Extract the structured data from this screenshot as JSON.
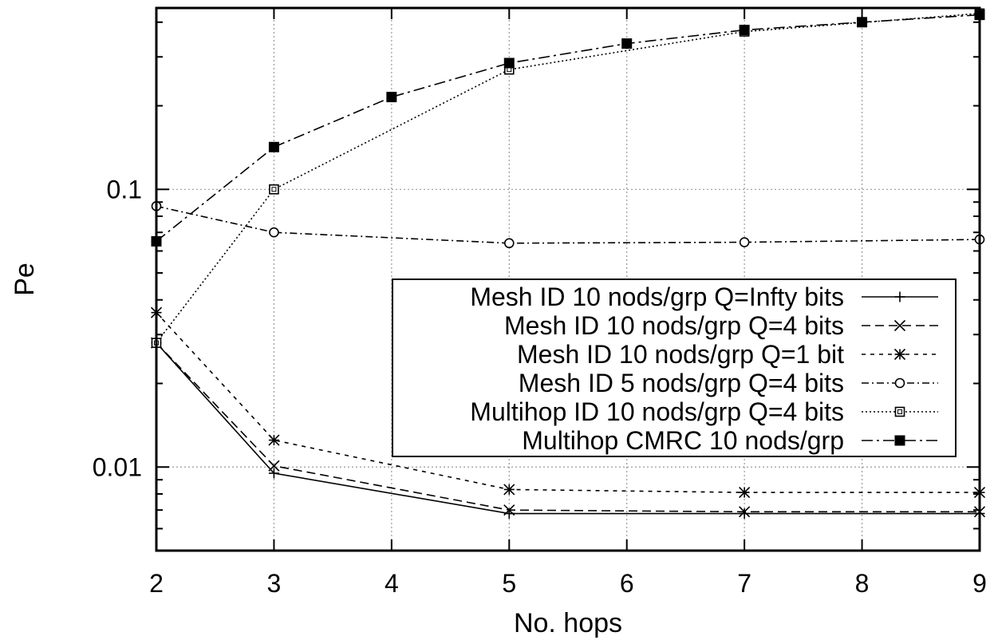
{
  "chart_data": {
    "type": "line",
    "xlabel": "No. hops",
    "ylabel": "Pe",
    "xlim": [
      2,
      9
    ],
    "ylim": [
      0.005,
      0.45
    ],
    "yscale": "log",
    "x_ticks": [
      "2",
      "3",
      "4",
      "5",
      "6",
      "7",
      "8",
      "9"
    ],
    "y_ticks": [
      {
        "value": 0.01,
        "label": "0.01"
      },
      {
        "value": 0.1,
        "label": "0.1"
      }
    ],
    "grid": true,
    "legend_position": "right-center",
    "series": [
      {
        "name": "Mesh ID 10 nods/grp Q=Infty bits",
        "marker": "plus",
        "dash": "solid",
        "points": [
          [
            2,
            0.028
          ],
          [
            3,
            0.0095
          ],
          [
            5,
            0.0068
          ],
          [
            7,
            0.0068
          ],
          [
            9,
            0.0068
          ]
        ]
      },
      {
        "name": "Mesh ID 10 nods/grp Q=4 bits",
        "marker": "cross",
        "dash": "dashed",
        "points": [
          [
            2,
            0.028
          ],
          [
            3,
            0.0101
          ],
          [
            5,
            0.007
          ],
          [
            7,
            0.0069
          ],
          [
            9,
            0.0069
          ]
        ]
      },
      {
        "name": "Mesh ID 10 nods/grp Q=1 bit",
        "marker": "star",
        "dash": "short-dashed",
        "points": [
          [
            2,
            0.036
          ],
          [
            3,
            0.0125
          ],
          [
            5,
            0.0083
          ],
          [
            7,
            0.0081
          ],
          [
            9,
            0.0081
          ]
        ]
      },
      {
        "name": "Mesh ID 5 nods/grp Q=4 bits",
        "marker": "circle",
        "dash": "dash-dot",
        "points": [
          [
            2,
            0.087
          ],
          [
            3,
            0.07
          ],
          [
            5,
            0.064
          ],
          [
            7,
            0.0645
          ],
          [
            9,
            0.066
          ]
        ]
      },
      {
        "name": "Multihop ID 10 nods/grp Q=4 bits",
        "marker": "square-open",
        "dash": "dotted",
        "points": [
          [
            2,
            0.028
          ],
          [
            3,
            0.1
          ],
          [
            5,
            0.27
          ],
          [
            7,
            0.37
          ],
          [
            9,
            0.43
          ]
        ]
      },
      {
        "name": "Multihop CMRC 10 nods/grp",
        "marker": "square-filled",
        "dash": "long-dash-dot",
        "points": [
          [
            2,
            0.065
          ],
          [
            3,
            0.142
          ],
          [
            4,
            0.215
          ],
          [
            5,
            0.285
          ],
          [
            6,
            0.335
          ],
          [
            7,
            0.375
          ],
          [
            8,
            0.4
          ],
          [
            9,
            0.425
          ]
        ]
      }
    ]
  }
}
